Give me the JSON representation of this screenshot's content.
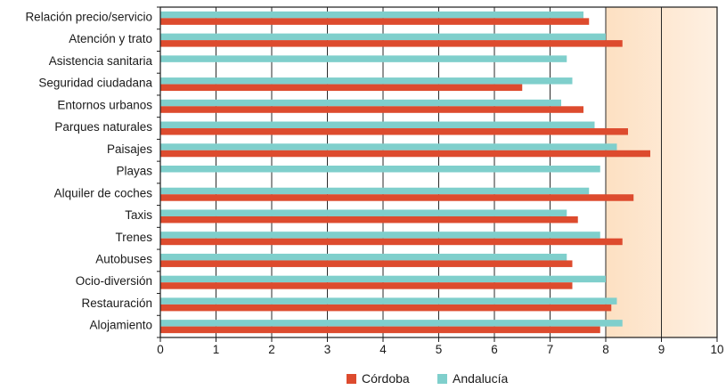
{
  "chart_data": {
    "type": "bar",
    "orientation": "horizontal",
    "categories": [
      "Relación precio/servicio",
      "Atención y trato",
      "Asistencia sanitaria",
      "Seguridad ciudadana",
      "Entornos urbanos",
      "Parques naturales",
      "Paisajes",
      "Playas",
      "Alquiler de coches",
      "Taxis",
      "Trenes",
      "Autobuses",
      "Ocio-diversión",
      "Restauración",
      "Alojamiento"
    ],
    "series": [
      {
        "name": "Córdoba",
        "color": "#dd4b2e",
        "values": [
          7.7,
          8.3,
          null,
          6.5,
          7.6,
          8.4,
          8.8,
          null,
          8.5,
          7.5,
          8.3,
          7.4,
          7.4,
          8.1,
          7.9
        ]
      },
      {
        "name": "Andalucía",
        "color": "#7fcfcc",
        "values": [
          7.6,
          8.0,
          7.3,
          7.4,
          7.2,
          7.8,
          8.2,
          7.9,
          7.7,
          7.3,
          7.9,
          7.3,
          8.0,
          8.2,
          8.3
        ]
      }
    ],
    "xlim": [
      0,
      10
    ],
    "xticks": [
      0,
      1,
      2,
      3,
      4,
      5,
      6,
      7,
      8,
      9,
      10
    ],
    "highlight_range": [
      8,
      10
    ],
    "highlight_color": "#fde3c8",
    "grid": "vertical",
    "legend_position": "bottom-center",
    "title": "",
    "xlabel": "",
    "ylabel": ""
  }
}
